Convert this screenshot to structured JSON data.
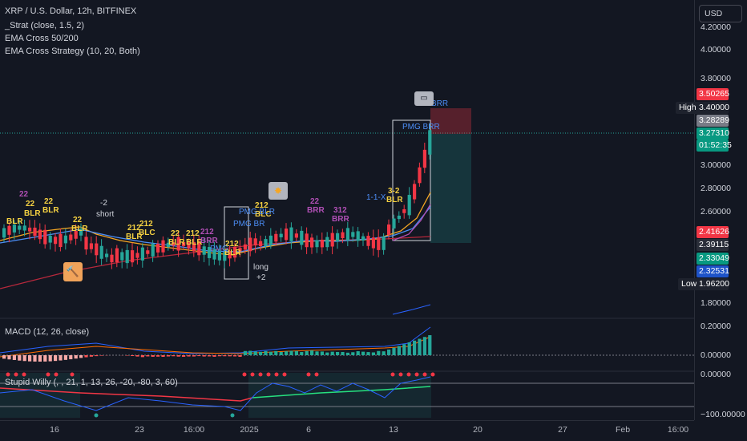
{
  "legend": {
    "title": "XRP / U.S. Dollar, 12h, BITFINEX",
    "line2": "_Strat (close, 1.5, 2)",
    "line3": "EMA Cross 50/200",
    "line4": "EMA Cross Strategy (10, 20, Both)"
  },
  "macd_label": "MACD (12, 26, close)",
  "willy_label": "Stupid Willy (, , 21, 1, 13, 26, -20, -80, 3, 60)",
  "currency": "USD",
  "price_axis": {
    "ticks": [
      "4.20000",
      "4.00000",
      "3.80000",
      "3.00000",
      "2.80000",
      "2.60000",
      "1.80000"
    ],
    "tags": {
      "p3_50265": "3.50265",
      "p3_40000": "3.40000",
      "p3_28289": "3.28289",
      "p3_27310": "3.27310",
      "countdown": "01:52:35",
      "p2_41626": "2.41626",
      "p2_39115": "2.39115",
      "p2_33049": "2.33049",
      "p2_32531": "2.32531",
      "p1_96200": "1.96200"
    },
    "high_label": "High",
    "low_label": "Low"
  },
  "macd_axis": {
    "ticks": [
      "0.20000",
      "0.00000"
    ]
  },
  "willy_axis": {
    "ticks": [
      "0.00000",
      "−100.00000"
    ]
  },
  "time_axis": [
    "16",
    "23",
    "16:00",
    "2025",
    "6",
    "13",
    "20",
    "27",
    "Feb",
    "16:00"
  ],
  "signals": {
    "s1": "22",
    "s2": "BLR",
    "s3": "22",
    "s4": "BLR",
    "s5": "22",
    "s6": "BLR",
    "s7": "22",
    "s8": "BLR",
    "s9": "-2",
    "s10": "short",
    "s11": "212",
    "s12": "BLR",
    "s13": "212",
    "s14": "BLC",
    "s15": "22",
    "s16": "BLR",
    "s17": "212",
    "s18": "BLR",
    "s19": "212",
    "s20": "BRR",
    "s21": "212",
    "s22": "BLR",
    "s23": "PMG",
    "s24": "212",
    "s25": "BLC",
    "s26": "PMG BR",
    "s27": "22",
    "s28": "BRR",
    "s29": "312",
    "s30": "BRR",
    "s31": "1-1-X",
    "s32": "3-2",
    "s33": "BLR",
    "s34": "BRR",
    "s35": "PMG BRR",
    "s36": "long",
    "s37": "+2",
    "s38": "PMG BLR"
  }
}
